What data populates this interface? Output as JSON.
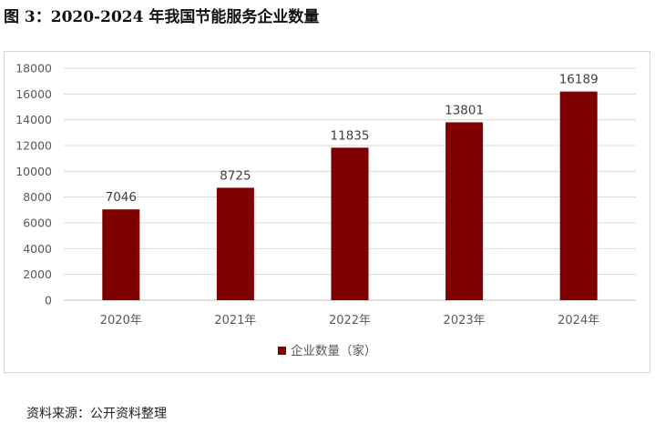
{
  "figure": {
    "title": "图 3：2020-2024 年我国节能服务企业数量",
    "source": "资料来源：公开资料整理"
  },
  "colors": {
    "bar": "#7f0000",
    "grid": "#d9d9d9",
    "axis": "#bfbfbf"
  },
  "chart_data": {
    "type": "bar",
    "categories": [
      "2020年",
      "2021年",
      "2022年",
      "2023年",
      "2024年"
    ],
    "series": [
      {
        "name": "企业数量（家）",
        "values": [
          7046,
          8725,
          11835,
          13801,
          16189
        ]
      }
    ],
    "ylim": [
      0,
      18000
    ],
    "yticks": [
      0,
      2000,
      4000,
      6000,
      8000,
      10000,
      12000,
      14000,
      16000,
      18000
    ],
    "data_labels": true,
    "grid": true,
    "legend": "bottom"
  }
}
